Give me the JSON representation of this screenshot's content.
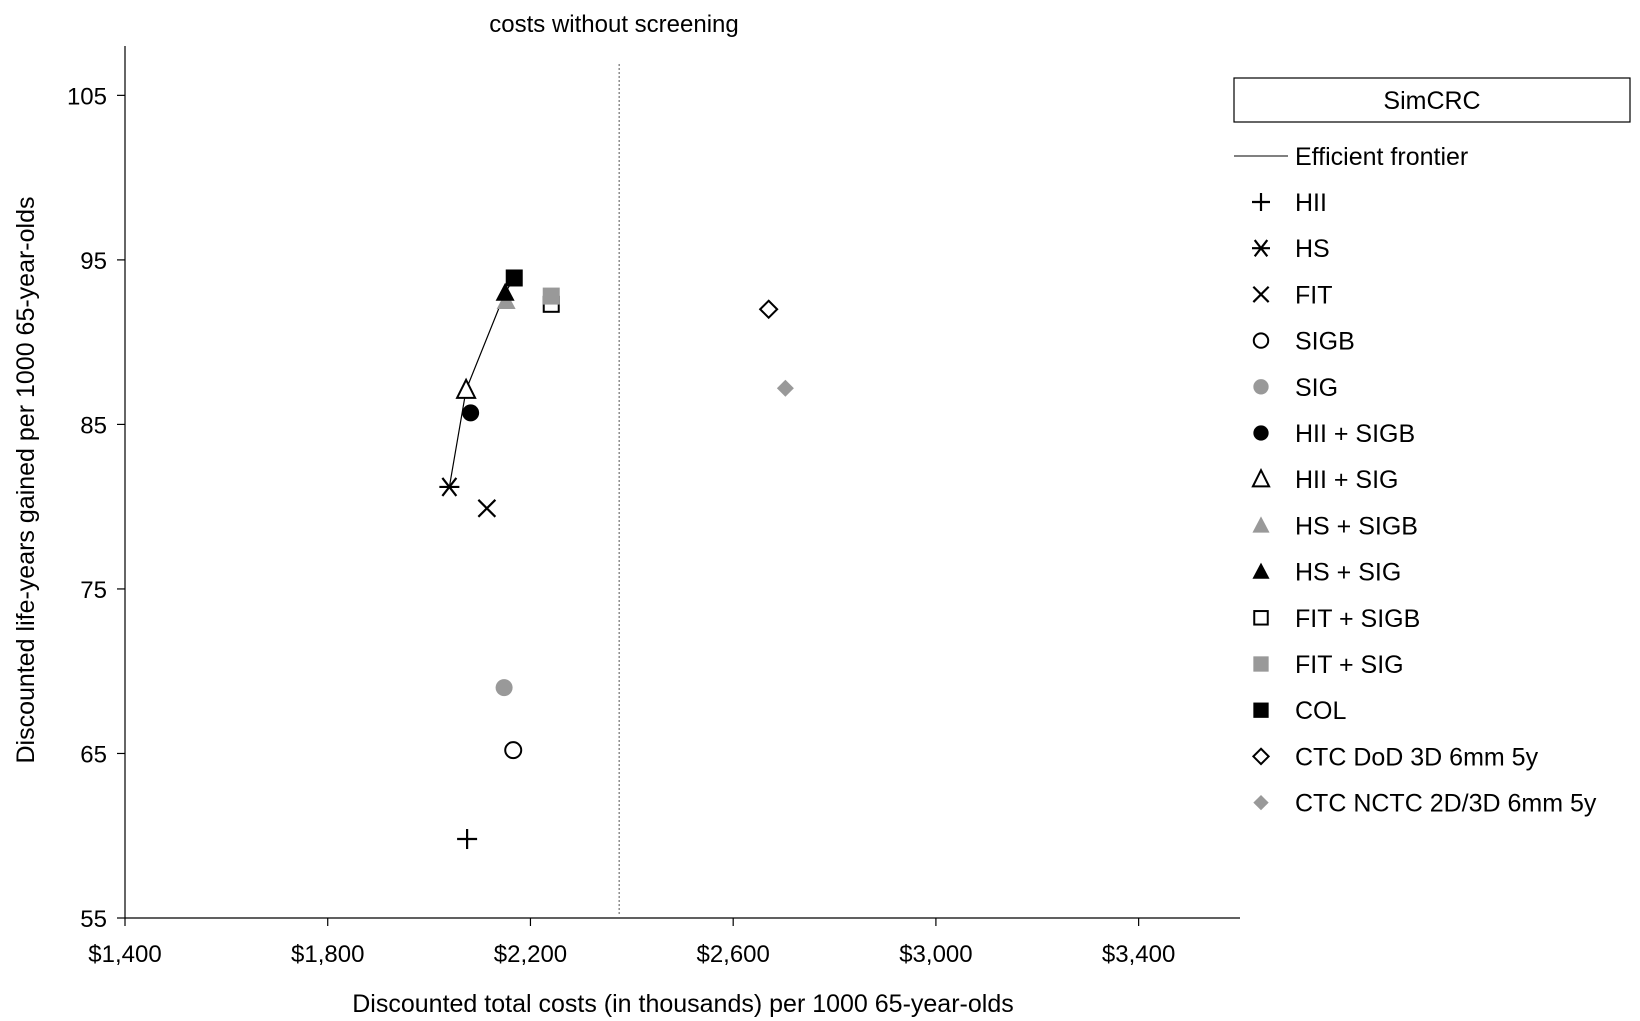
{
  "chart_data": {
    "type": "scatter",
    "title": "",
    "annotation": "costs without screening",
    "reference_line_x": 2375,
    "xlabel": "Discounted total costs (in thousands) per 1000 65-year-olds",
    "ylabel": "Discounted life-years gained per 1000 65-year-olds",
    "xlim": [
      1400,
      3600
    ],
    "ylim": [
      55,
      108
    ],
    "x_ticks": [
      1400,
      1800,
      2200,
      2600,
      3000,
      3400
    ],
    "x_tick_labels": [
      "$1,400",
      "$1,800",
      "$2,200",
      "$2,600",
      "$3,000",
      "$3,400"
    ],
    "y_ticks": [
      55,
      65,
      75,
      85,
      95,
      105
    ],
    "y_tick_labels": [
      "55",
      "65",
      "75",
      "85",
      "95",
      "105"
    ],
    "grid": false,
    "legend_title": "SimCRC",
    "legend_position": "right",
    "frontier": {
      "name": "Efficient frontier",
      "points": [
        [
          2040,
          81.2
        ],
        [
          2073,
          87.1
        ],
        [
          2150,
          93.0
        ],
        [
          2168,
          93.9
        ]
      ]
    },
    "series": [
      {
        "name": "HII",
        "marker": "plus",
        "color": "#000000",
        "x": 2075,
        "y": 59.8
      },
      {
        "name": "HS",
        "marker": "asterisk",
        "color": "#000000",
        "x": 2040,
        "y": 81.2
      },
      {
        "name": "FIT",
        "marker": "x",
        "color": "#000000",
        "x": 2114,
        "y": 79.9
      },
      {
        "name": "SIGB",
        "marker": "circle-open",
        "color": "#000000",
        "x": 2166,
        "y": 65.2
      },
      {
        "name": "SIG",
        "marker": "circle-filled",
        "color": "#999999",
        "x": 2148,
        "y": 69.0
      },
      {
        "name": "HII + SIGB",
        "marker": "circle-filled",
        "color": "#000000",
        "x": 2082,
        "y": 85.7
      },
      {
        "name": "HII + SIG",
        "marker": "triangle-open",
        "color": "#000000",
        "x": 2073,
        "y": 87.1
      },
      {
        "name": "HS + SIGB",
        "marker": "triangle-filled",
        "color": "#999999",
        "x": 2152,
        "y": 92.5
      },
      {
        "name": "HS + SIG",
        "marker": "triangle-filled",
        "color": "#000000",
        "x": 2150,
        "y": 93.0
      },
      {
        "name": "FIT + SIGB",
        "marker": "square-open",
        "color": "#000000",
        "x": 2241,
        "y": 92.3
      },
      {
        "name": "FIT + SIG",
        "marker": "square-filled",
        "color": "#999999",
        "x": 2241,
        "y": 92.8
      },
      {
        "name": "COL",
        "marker": "square-filled",
        "color": "#000000",
        "x": 2168,
        "y": 93.9
      },
      {
        "name": "CTC DoD 3D 6mm 5y",
        "marker": "diamond-open",
        "color": "#000000",
        "x": 2670,
        "y": 92.0
      },
      {
        "name": "CTC NCTC 2D/3D 6mm 5y",
        "marker": "diamond-filled",
        "color": "#999999",
        "x": 2703,
        "y": 87.2
      }
    ]
  }
}
